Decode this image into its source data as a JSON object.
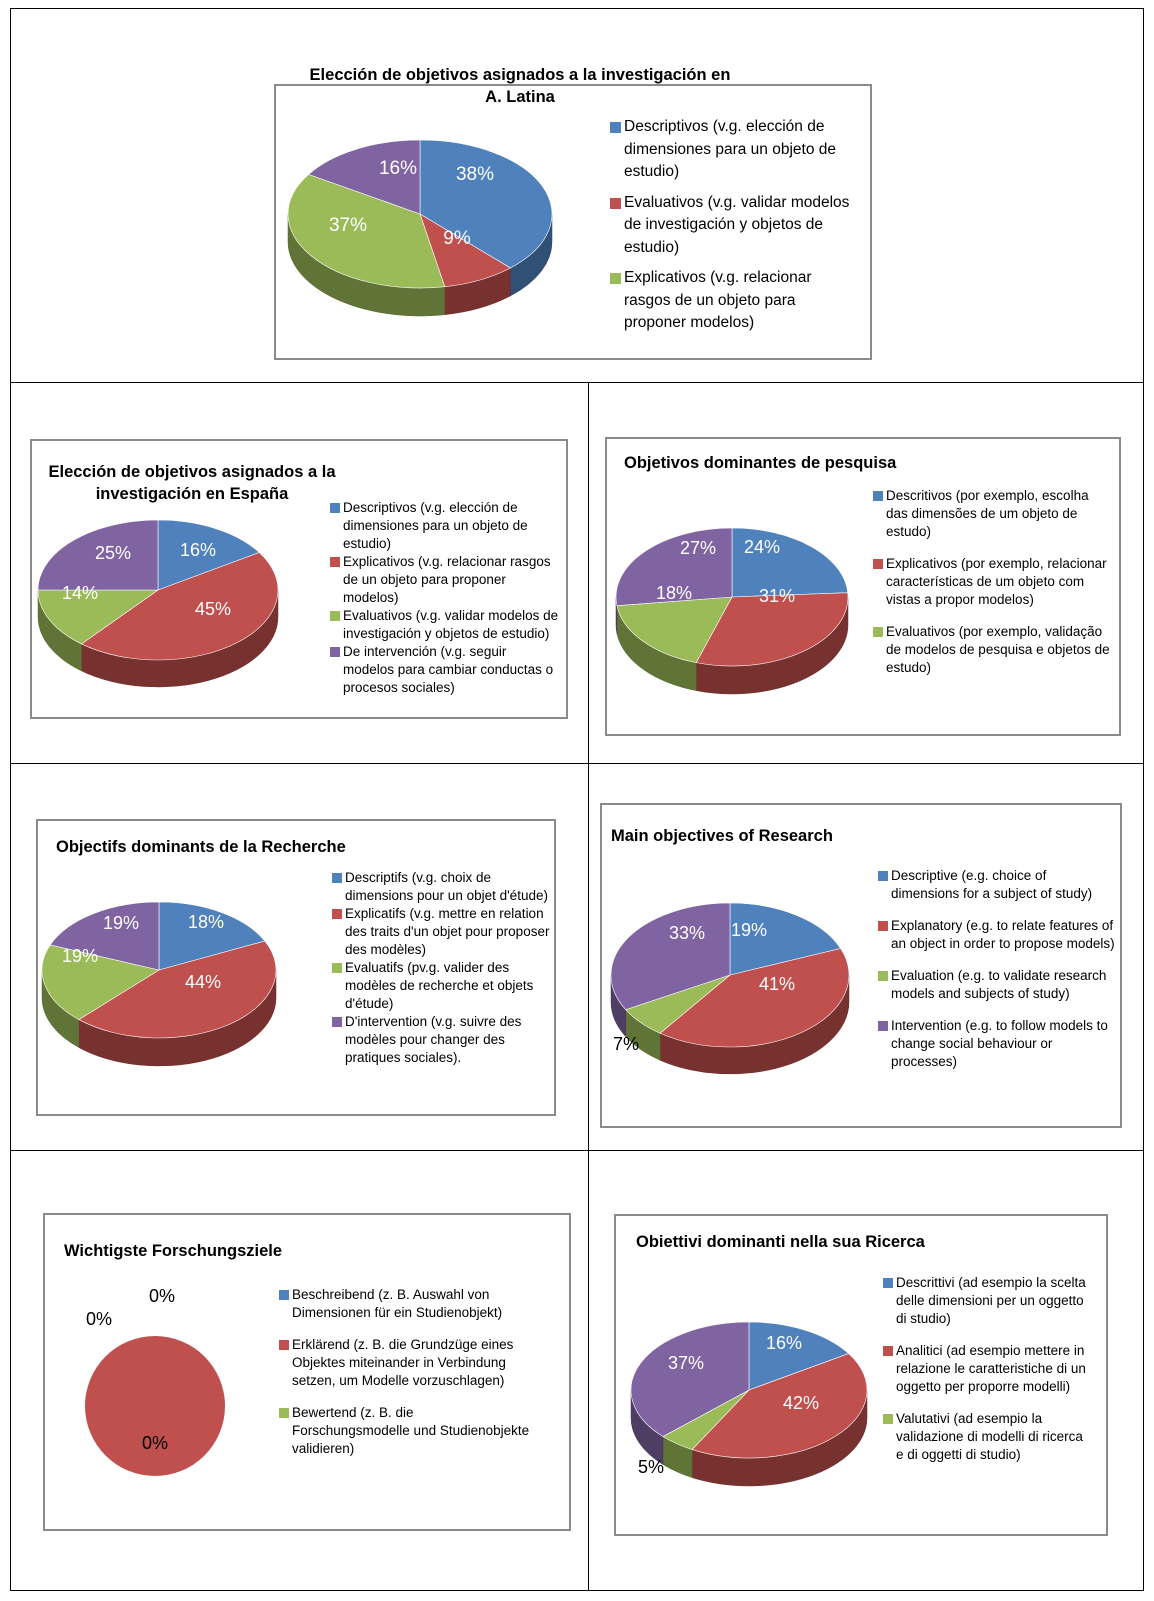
{
  "colors": {
    "blue": "#4f81bd",
    "red": "#c0504d",
    "green": "#9bbb59",
    "purple": "#8064a2"
  },
  "charts": [
    {
      "title_lines": [
        "Elección de objetivos asignados a la investigación en",
        "A. Latina"
      ],
      "legend": [
        {
          "label": "Descriptivos (v.g. elección de dimensiones para un objeto de estudio)",
          "color": "#4f81bd"
        },
        {
          "label": "Evaluativos (v.g. validar modelos de investigación y objetos de estudio)",
          "color": "#c0504d"
        },
        {
          "label": "Explicativos (v.g. relacionar rasgos de un objeto para proponer modelos)",
          "color": "#9bbb59"
        }
      ],
      "labels": [
        "38%",
        "9%",
        "37%",
        "16%"
      ]
    },
    {
      "title_lines": [
        "Elección de objetivos asignados a la",
        "investigación en España"
      ],
      "legend": [
        {
          "label": "Descriptivos (v.g. elección de dimensiones para un objeto de estudio)",
          "color": "#4f81bd"
        },
        {
          "label": "Explicativos (v.g. relacionar rasgos de un objeto para proponer modelos)",
          "color": "#c0504d"
        },
        {
          "label": "Evaluativos (v.g. validar modelos de investigación y objetos de estudio)",
          "color": "#9bbb59"
        },
        {
          "label": "De intervención (v.g. seguir modelos para cambiar conductas o procesos sociales)",
          "color": "#8064a2"
        }
      ],
      "labels": [
        "16%",
        "45%",
        "14%",
        "25%"
      ]
    },
    {
      "title_lines": [
        "Objetivos dominantes de pesquisa"
      ],
      "legend": [
        {
          "label": "Descritivos (por exemplo, escolha das dimensões de um objeto de estudo)",
          "color": "#4f81bd"
        },
        {
          "label": "Explicativos (por exemplo, relacionar características de um objeto com vistas a propor modelos)",
          "color": "#c0504d"
        },
        {
          "label": "Evaluativos (por exemplo, validação de modelos de pesquisa e objetos de estudo)",
          "color": "#9bbb59"
        }
      ],
      "labels": [
        "24%",
        "31%",
        "18%",
        "27%"
      ]
    },
    {
      "title_lines": [
        "Objectifs dominants de la Recherche"
      ],
      "legend": [
        {
          "label": "Descriptifs (v.g. choix de dimensions pour un objet d'étude)",
          "color": "#4f81bd"
        },
        {
          "label": "Explicatifs (v.g. mettre en relation des traits d'un objet pour proposer des modèles)",
          "color": "#c0504d"
        },
        {
          "label": "Evaluatifs (pv.g. valider des modèles de recherche et objets d'étude)",
          "color": "#9bbb59"
        },
        {
          "label": "D'intervention (v.g. suivre des modèles pour changer des pratiques sociales).",
          "color": "#8064a2"
        }
      ],
      "labels": [
        "18%",
        "44%",
        "19%",
        "19%"
      ]
    },
    {
      "title_lines": [
        "Main objectives of Research"
      ],
      "legend": [
        {
          "label": "Descriptive (e.g. choice of dimensions for a subject of study)",
          "color": "#4f81bd"
        },
        {
          "label": "Explanatory (e.g. to relate features of an object in order to propose models)",
          "color": "#c0504d"
        },
        {
          "label": "Evaluation (e.g. to validate research models and subjects of study)",
          "color": "#9bbb59"
        },
        {
          "label": "Intervention (e.g. to follow models to change social behaviour or processes)",
          "color": "#8064a2"
        }
      ],
      "labels": [
        "19%",
        "41%",
        "7%",
        "33%"
      ]
    },
    {
      "title_lines": [
        "Wichtigste Forschungsziele"
      ],
      "legend": [
        {
          "label": "Beschreibend (z. B. Auswahl von Dimensionen für ein Studienobjekt)",
          "color": "#4f81bd"
        },
        {
          "label": "Erklärend (z. B. die Grundzüge eines Objektes miteinander in Verbindung setzen, um Modelle vorzuschlagen)",
          "color": "#c0504d"
        },
        {
          "label": "Bewertend (z. B. die Forschungsmodelle und Studienobjekte validieren)",
          "color": "#9bbb59"
        }
      ],
      "labels": [
        "0%",
        "100%",
        "0%",
        "0%"
      ]
    },
    {
      "title_lines": [
        "Obiettivi dominanti nella sua Ricerca"
      ],
      "legend": [
        {
          "label": "Descrittivi (ad esempio la scelta delle dimensioni per un oggetto di studio)",
          "color": "#4f81bd"
        },
        {
          "label": "Analitici (ad esempio mettere in relazione le caratteristiche di un oggetto per proporre modelli)",
          "color": "#c0504d"
        },
        {
          "label": "Valutativi  (ad esempio la validazione di modelli di ricerca e di oggetti di studio)",
          "color": "#9bbb59"
        }
      ],
      "labels": [
        "16%",
        "42%",
        "5%",
        "37%"
      ]
    }
  ],
  "chart_data": [
    {
      "type": "pie",
      "title": "Elección de objetivos asignados a la investigación en A. Latina",
      "categories": [
        "Descriptivos",
        "Evaluativos",
        "Explicativos",
        "(unlabeled)"
      ],
      "values": [
        38,
        9,
        37,
        16
      ],
      "unit": "%",
      "style": "3d"
    },
    {
      "type": "pie",
      "title": "Elección de objetivos asignados a la investigación en España",
      "categories": [
        "Descriptivos",
        "Explicativos",
        "Evaluativos",
        "De intervención"
      ],
      "values": [
        16,
        45,
        14,
        25
      ],
      "unit": "%",
      "style": "3d"
    },
    {
      "type": "pie",
      "title": "Objetivos dominantes de pesquisa",
      "categories": [
        "Descritivos",
        "Explicativos",
        "Evaluativos",
        "(unlabeled)"
      ],
      "values": [
        24,
        31,
        18,
        27
      ],
      "unit": "%",
      "style": "3d"
    },
    {
      "type": "pie",
      "title": "Objectifs dominants de la Recherche",
      "categories": [
        "Descriptifs",
        "Explicatifs",
        "Evaluatifs",
        "D'intervention"
      ],
      "values": [
        18,
        44,
        19,
        19
      ],
      "unit": "%",
      "style": "3d"
    },
    {
      "type": "pie",
      "title": "Main objectives of Research",
      "categories": [
        "Descriptive",
        "Explanatory",
        "Evaluation",
        "Intervention"
      ],
      "values": [
        19,
        41,
        7,
        33
      ],
      "unit": "%",
      "style": "3d"
    },
    {
      "type": "pie",
      "title": "Wichtigste Forschungsziele",
      "categories": [
        "Beschreibend",
        "Erklärend",
        "Bewertend",
        "(unlabeled)"
      ],
      "values": [
        0,
        100,
        0,
        0
      ],
      "unit": "%",
      "style": "2d"
    },
    {
      "type": "pie",
      "title": "Obiettivi dominanti nella sua Ricerca",
      "categories": [
        "Descrittivi",
        "Analitici",
        "Valutativi",
        "(unlabeled)"
      ],
      "values": [
        16,
        42,
        5,
        37
      ],
      "unit": "%",
      "style": "3d"
    }
  ]
}
